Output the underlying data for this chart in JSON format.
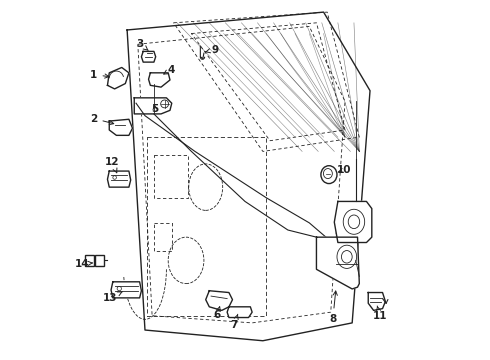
{
  "background_color": "#ffffff",
  "fig_width": 4.9,
  "fig_height": 3.6,
  "dpi": 100,
  "line_color": "#222222",
  "label_fontsize": 7.5,
  "label_positions": {
    "1": [
      0.077,
      0.795,
      0.13,
      0.788
    ],
    "2": [
      0.077,
      0.672,
      0.143,
      0.655
    ],
    "3": [
      0.205,
      0.882,
      0.23,
      0.862
    ],
    "4": [
      0.292,
      0.808,
      0.27,
      0.795
    ],
    "5": [
      0.248,
      0.7,
      0.245,
      0.72
    ],
    "6": [
      0.422,
      0.122,
      0.43,
      0.148
    ],
    "7": [
      0.47,
      0.095,
      0.48,
      0.125
    ],
    "8": [
      0.746,
      0.112,
      0.755,
      0.2
    ],
    "9": [
      0.415,
      0.865,
      0.388,
      0.858
    ],
    "10": [
      0.778,
      0.528,
      0.752,
      0.52
    ],
    "11": [
      0.878,
      0.118,
      0.87,
      0.148
    ],
    "12": [
      0.128,
      0.55,
      0.142,
      0.518
    ],
    "13": [
      0.122,
      0.17,
      0.158,
      0.188
    ],
    "14": [
      0.043,
      0.265,
      0.075,
      0.268
    ]
  }
}
